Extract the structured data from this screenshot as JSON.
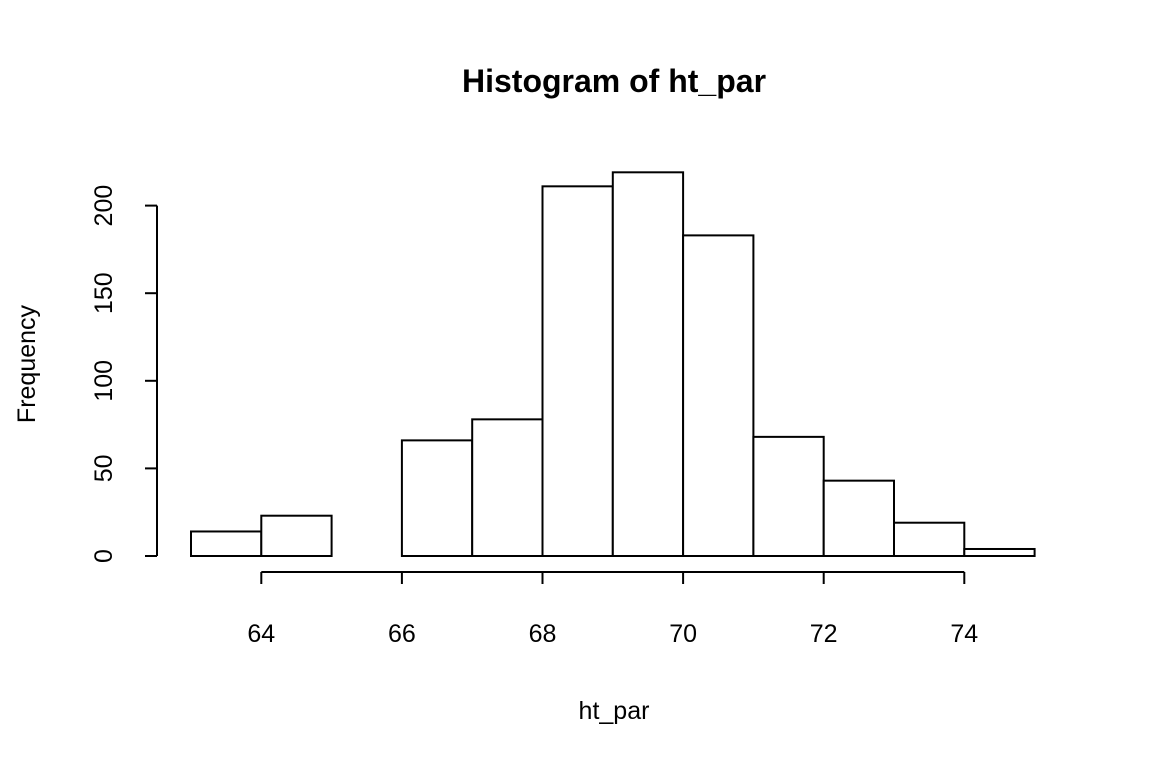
{
  "chart_data": {
    "type": "bar",
    "title": "Histogram of ht_par",
    "xlabel": "ht_par",
    "ylabel": "Frequency",
    "bins": [
      {
        "x0": 63,
        "x1": 64,
        "count": 14
      },
      {
        "x0": 64,
        "x1": 65,
        "count": 23
      },
      {
        "x0": 65,
        "x1": 66,
        "count": 0
      },
      {
        "x0": 66,
        "x1": 67,
        "count": 66
      },
      {
        "x0": 67,
        "x1": 68,
        "count": 78
      },
      {
        "x0": 68,
        "x1": 69,
        "count": 211
      },
      {
        "x0": 69,
        "x1": 70,
        "count": 219
      },
      {
        "x0": 70,
        "x1": 71,
        "count": 183
      },
      {
        "x0": 71,
        "x1": 72,
        "count": 68
      },
      {
        "x0": 72,
        "x1": 73,
        "count": 43
      },
      {
        "x0": 73,
        "x1": 74,
        "count": 19
      },
      {
        "x0": 74,
        "x1": 75,
        "count": 4
      }
    ],
    "x_ticks": [
      64,
      66,
      68,
      70,
      72,
      74
    ],
    "y_ticks": [
      0,
      50,
      100,
      150,
      200
    ],
    "xlim": [
      63,
      75
    ],
    "ylim": [
      0,
      219
    ],
    "grid": false,
    "legend": "none"
  }
}
